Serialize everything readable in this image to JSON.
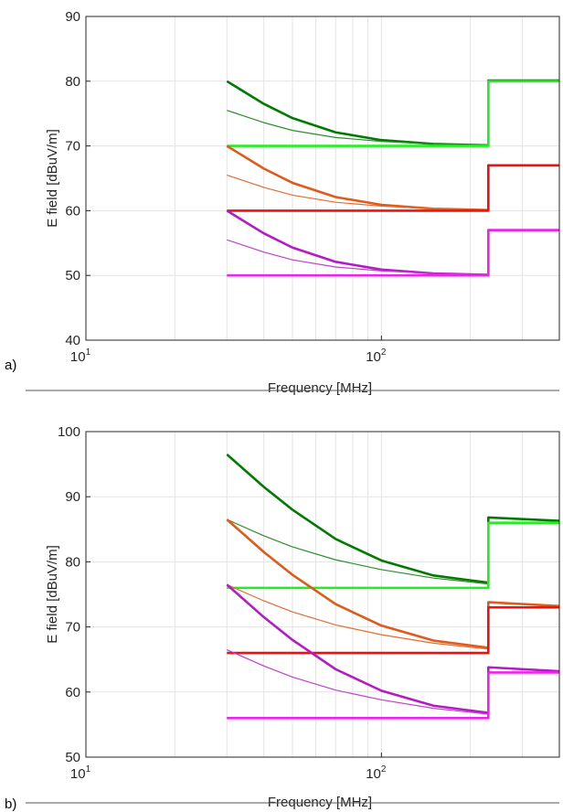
{
  "chart_data": [
    {
      "type": "line",
      "panel_label": "a)",
      "xlabel": "Frequency [MHz]",
      "ylabel": "E field [dBuV/m]",
      "x_scale": "log",
      "xlim": [
        10,
        400
      ],
      "ylim": [
        40,
        90
      ],
      "x_ticks": [
        {
          "value": 10,
          "base": "10",
          "exp": "1"
        },
        {
          "value": 100,
          "base": "10",
          "exp": "2"
        }
      ],
      "y_ticks": [
        40,
        50,
        60,
        70,
        80,
        90
      ],
      "grid": true,
      "legend": "none",
      "series": [
        {
          "color": "#007a00",
          "width": 2.6,
          "points": [
            [
              30,
              80.0
            ],
            [
              40,
              76.5
            ],
            [
              50,
              74.3
            ],
            [
              70,
              72.1
            ],
            [
              100,
              70.9
            ],
            [
              150,
              70.3
            ],
            [
              230,
              70.1
            ],
            [
              230,
              80.1
            ],
            [
              400,
              80.1
            ]
          ]
        },
        {
          "color": "#2c8f2c",
          "width": 1.2,
          "points": [
            [
              30,
              75.5
            ],
            [
              40,
              73.6
            ],
            [
              50,
              72.4
            ],
            [
              70,
              71.3
            ],
            [
              100,
              70.7
            ],
            [
              150,
              70.3
            ],
            [
              230,
              70.1
            ]
          ]
        },
        {
          "color": "#22ee22",
          "width": 2.6,
          "points": [
            [
              30,
              70.0
            ],
            [
              230,
              70.0
            ],
            [
              230,
              80.0
            ],
            [
              400,
              80.0
            ]
          ]
        },
        {
          "color": "#e05a1a",
          "width": 2.6,
          "points": [
            [
              30,
              70.0
            ],
            [
              40,
              66.5
            ],
            [
              50,
              64.3
            ],
            [
              70,
              62.1
            ],
            [
              100,
              60.9
            ],
            [
              150,
              60.3
            ],
            [
              230,
              60.1
            ],
            [
              230,
              67.0
            ],
            [
              400,
              67.0
            ]
          ]
        },
        {
          "color": "#e86a30",
          "width": 1.2,
          "points": [
            [
              30,
              65.5
            ],
            [
              40,
              63.6
            ],
            [
              50,
              62.4
            ],
            [
              70,
              61.3
            ],
            [
              100,
              60.7
            ],
            [
              150,
              60.3
            ],
            [
              230,
              60.1
            ]
          ]
        },
        {
          "color": "#ee1111",
          "width": 2.6,
          "points": [
            [
              30,
              60.0
            ],
            [
              230,
              60.0
            ],
            [
              230,
              67.0
            ],
            [
              400,
              67.0
            ]
          ]
        },
        {
          "color": "#b41bc4",
          "width": 2.6,
          "points": [
            [
              30,
              60.0
            ],
            [
              40,
              56.5
            ],
            [
              50,
              54.3
            ],
            [
              70,
              52.1
            ],
            [
              100,
              50.9
            ],
            [
              150,
              50.3
            ],
            [
              230,
              50.1
            ],
            [
              230,
              57.0
            ],
            [
              400,
              57.0
            ]
          ]
        },
        {
          "color": "#c040cc",
          "width": 1.2,
          "points": [
            [
              30,
              55.5
            ],
            [
              40,
              53.6
            ],
            [
              50,
              52.4
            ],
            [
              70,
              51.3
            ],
            [
              100,
              50.7
            ],
            [
              150,
              50.3
            ],
            [
              230,
              50.1
            ]
          ]
        },
        {
          "color": "#ee22ee",
          "width": 2.6,
          "points": [
            [
              30,
              50.0
            ],
            [
              230,
              50.0
            ],
            [
              230,
              57.0
            ],
            [
              400,
              57.0
            ]
          ]
        }
      ]
    },
    {
      "type": "line",
      "panel_label": "b)",
      "xlabel": "Frequency [MHz]",
      "ylabel": "E field [dBuV/m]",
      "x_scale": "log",
      "xlim": [
        10,
        400
      ],
      "ylim": [
        50,
        100
      ],
      "x_ticks": [
        {
          "value": 10,
          "base": "10",
          "exp": "1"
        },
        {
          "value": 100,
          "base": "10",
          "exp": "2"
        }
      ],
      "y_ticks": [
        50,
        60,
        70,
        80,
        90,
        100
      ],
      "grid": true,
      "legend": "none",
      "series": [
        {
          "color": "#007a00",
          "width": 2.6,
          "points": [
            [
              30,
              96.5
            ],
            [
              40,
              91.5
            ],
            [
              50,
              88.0
            ],
            [
              70,
              83.5
            ],
            [
              100,
              80.2
            ],
            [
              150,
              77.9
            ],
            [
              230,
              76.8
            ],
            [
              230,
              86.8
            ],
            [
              400,
              86.3
            ]
          ]
        },
        {
          "color": "#2c8f2c",
          "width": 1.2,
          "points": [
            [
              30,
              86.5
            ],
            [
              40,
              84.0
            ],
            [
              50,
              82.3
            ],
            [
              70,
              80.3
            ],
            [
              100,
              78.8
            ],
            [
              150,
              77.5
            ],
            [
              230,
              76.6
            ]
          ]
        },
        {
          "color": "#22ee22",
          "width": 2.6,
          "points": [
            [
              30,
              76.0
            ],
            [
              230,
              76.0
            ],
            [
              230,
              86.0
            ],
            [
              400,
              86.0
            ]
          ]
        },
        {
          "color": "#e05a1a",
          "width": 2.6,
          "points": [
            [
              30,
              86.5
            ],
            [
              40,
              81.5
            ],
            [
              50,
              78.0
            ],
            [
              70,
              73.5
            ],
            [
              100,
              70.2
            ],
            [
              150,
              67.9
            ],
            [
              230,
              66.8
            ],
            [
              230,
              73.8
            ],
            [
              400,
              73.2
            ]
          ]
        },
        {
          "color": "#e86a30",
          "width": 1.2,
          "points": [
            [
              30,
              76.5
            ],
            [
              40,
              74.0
            ],
            [
              50,
              72.3
            ],
            [
              70,
              70.3
            ],
            [
              100,
              68.8
            ],
            [
              150,
              67.5
            ],
            [
              230,
              66.6
            ]
          ]
        },
        {
          "color": "#ee1111",
          "width": 2.6,
          "points": [
            [
              30,
              66.0
            ],
            [
              230,
              66.0
            ],
            [
              230,
              73.0
            ],
            [
              400,
              73.0
            ]
          ]
        },
        {
          "color": "#b41bc4",
          "width": 2.6,
          "points": [
            [
              30,
              76.5
            ],
            [
              40,
              71.5
            ],
            [
              50,
              68.0
            ],
            [
              70,
              63.5
            ],
            [
              100,
              60.2
            ],
            [
              150,
              57.9
            ],
            [
              230,
              56.8
            ],
            [
              230,
              63.8
            ],
            [
              400,
              63.2
            ]
          ]
        },
        {
          "color": "#c040cc",
          "width": 1.2,
          "points": [
            [
              30,
              66.5
            ],
            [
              40,
              64.0
            ],
            [
              50,
              62.3
            ],
            [
              70,
              60.3
            ],
            [
              100,
              58.8
            ],
            [
              150,
              57.5
            ],
            [
              230,
              56.6
            ]
          ]
        },
        {
          "color": "#ee22ee",
          "width": 2.6,
          "points": [
            [
              30,
              56.0
            ],
            [
              230,
              56.0
            ],
            [
              230,
              63.0
            ],
            [
              400,
              63.0
            ]
          ]
        }
      ]
    }
  ]
}
